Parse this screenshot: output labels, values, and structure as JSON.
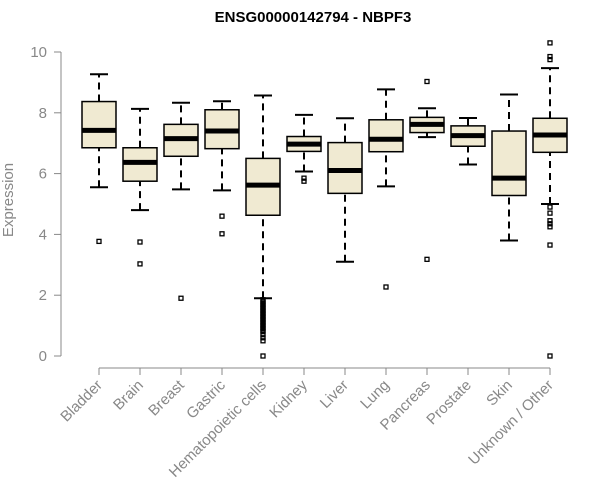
{
  "chart_data": {
    "type": "boxplot",
    "title": "ENSG00000142794 - NBPF3",
    "xlabel": "",
    "ylabel": "Expression",
    "ylim": [
      0,
      10
    ],
    "yticks": [
      0,
      2,
      4,
      6,
      8,
      10
    ],
    "grid": false,
    "box_fill": "#f0ead2",
    "categories": [
      "Bladder",
      "Brain",
      "Breast",
      "Gastric",
      "Hematopoietic cells",
      "Kidney",
      "Liver",
      "Lung",
      "Pancreas",
      "Prostate",
      "Skin",
      "Unknown / Other"
    ],
    "boxes": [
      {
        "whisker_low": 5.55,
        "q1": 6.85,
        "median": 7.42,
        "q3": 8.37,
        "whisker_high": 9.27,
        "outliers": [
          3.77
        ]
      },
      {
        "whisker_low": 4.8,
        "q1": 5.75,
        "median": 6.37,
        "q3": 6.85,
        "whisker_high": 8.13,
        "outliers": [
          3.75,
          3.03
        ]
      },
      {
        "whisker_low": 5.48,
        "q1": 6.57,
        "median": 7.15,
        "q3": 7.62,
        "whisker_high": 8.33,
        "outliers": [
          1.9
        ]
      },
      {
        "whisker_low": 5.45,
        "q1": 6.82,
        "median": 7.4,
        "q3": 8.1,
        "whisker_high": 8.38,
        "outliers": [
          4.6,
          4.02
        ]
      },
      {
        "whisker_low": 1.9,
        "q1": 4.63,
        "median": 5.62,
        "q3": 6.5,
        "whisker_high": 8.57,
        "outliers": [
          1.85,
          1.8,
          1.75,
          1.7,
          1.65,
          1.6,
          1.55,
          1.5,
          1.45,
          1.4,
          1.35,
          1.3,
          1.25,
          1.2,
          1.15,
          1.1,
          1.05,
          1.0,
          0.95,
          0.9,
          0.85,
          0.8,
          0.7,
          0.6,
          0.5,
          0.0
        ]
      },
      {
        "whisker_low": 6.07,
        "q1": 6.73,
        "median": 6.97,
        "q3": 7.22,
        "whisker_high": 7.93,
        "outliers": [
          5.85,
          5.75
        ]
      },
      {
        "whisker_low": 3.1,
        "q1": 5.35,
        "median": 6.1,
        "q3": 7.02,
        "whisker_high": 7.82,
        "outliers": []
      },
      {
        "whisker_low": 5.58,
        "q1": 6.72,
        "median": 7.13,
        "q3": 7.77,
        "whisker_high": 8.77,
        "outliers": [
          2.27
        ]
      },
      {
        "whisker_low": 7.2,
        "q1": 7.35,
        "median": 7.62,
        "q3": 7.85,
        "whisker_high": 8.15,
        "outliers": [
          9.03,
          3.18
        ]
      },
      {
        "whisker_low": 6.3,
        "q1": 6.9,
        "median": 7.25,
        "q3": 7.57,
        "whisker_high": 7.83,
        "outliers": []
      },
      {
        "whisker_low": 3.8,
        "q1": 5.28,
        "median": 5.85,
        "q3": 7.4,
        "whisker_high": 8.6,
        "outliers": []
      },
      {
        "whisker_low": 5.0,
        "q1": 6.7,
        "median": 7.27,
        "q3": 7.82,
        "whisker_high": 9.47,
        "outliers": [
          10.3,
          9.85,
          9.75,
          4.9,
          4.7,
          4.45,
          4.35,
          4.25,
          3.65,
          0.0
        ]
      }
    ]
  }
}
